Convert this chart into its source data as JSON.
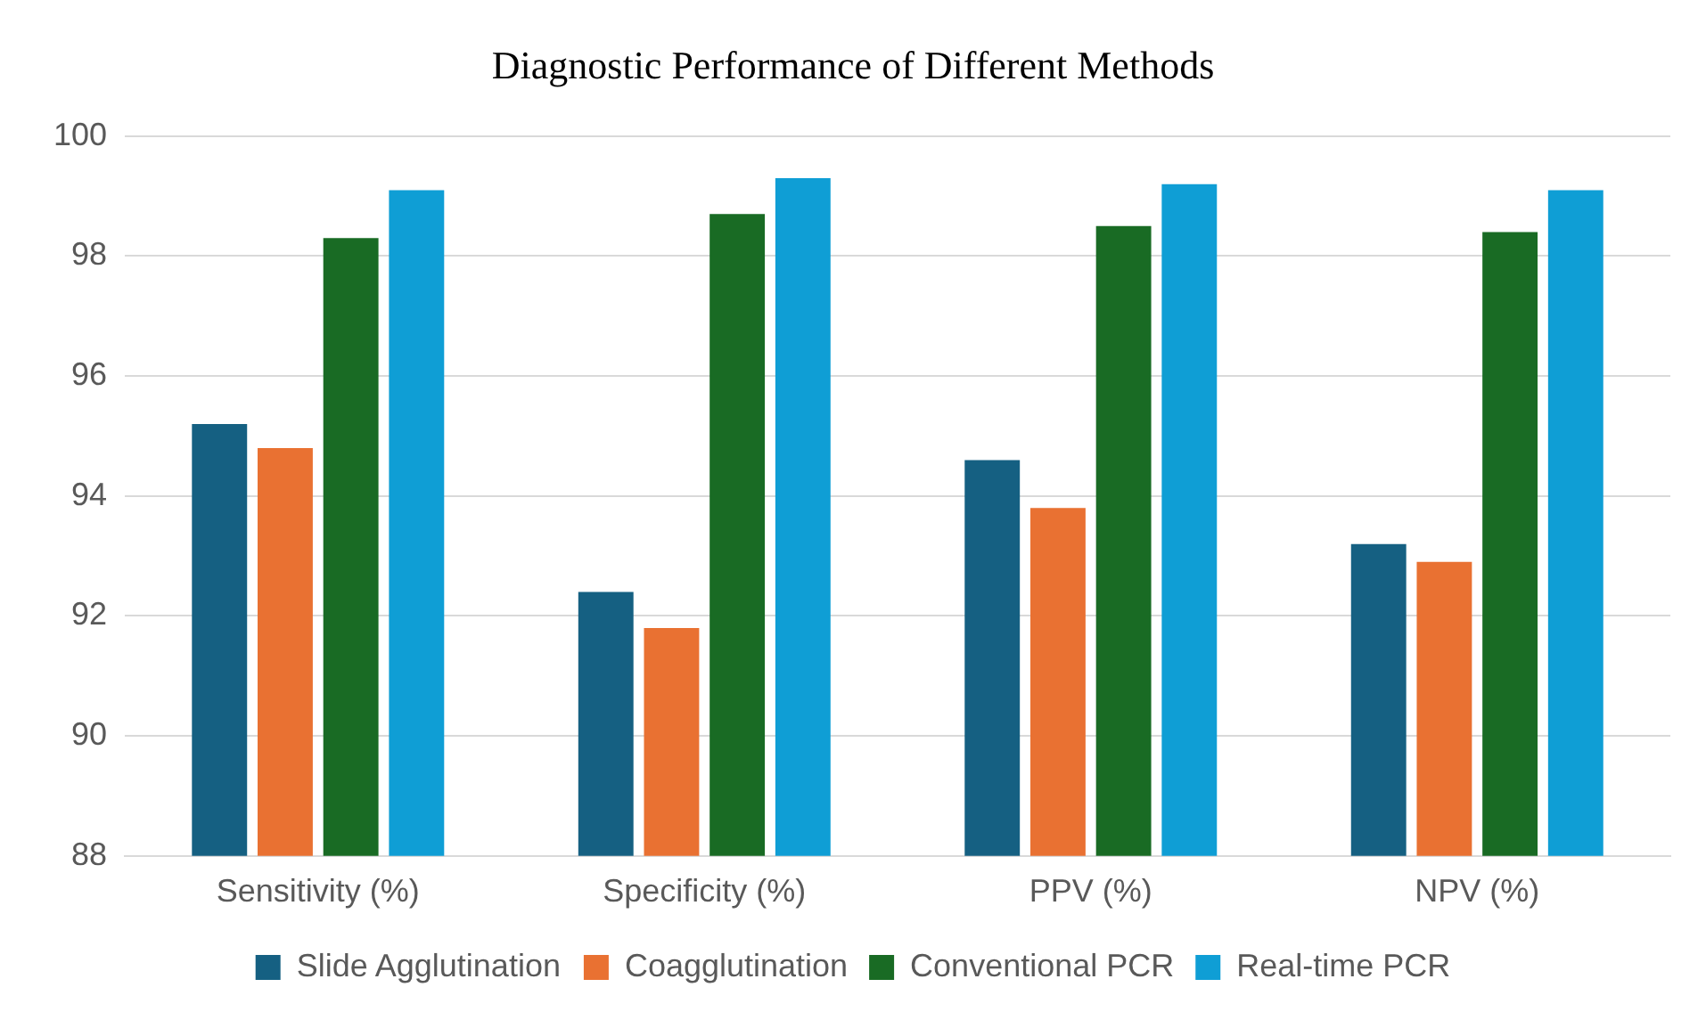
{
  "chart_data": {
    "type": "bar",
    "title": "Diagnostic Performance of Different Methods",
    "categories": [
      "Sensitivity (%)",
      "Specificity (%)",
      "PPV (%)",
      "NPV (%)"
    ],
    "series": [
      {
        "name": "Slide Agglutination",
        "color": "#156082",
        "values": [
          95.2,
          92.4,
          94.6,
          93.2
        ]
      },
      {
        "name": "Coagglutination",
        "color": "#e97132",
        "values": [
          94.8,
          91.8,
          93.8,
          92.9
        ]
      },
      {
        "name": "Conventional PCR",
        "color": "#196b24",
        "values": [
          98.3,
          98.7,
          98.5,
          98.4
        ]
      },
      {
        "name": "Real-time PCR",
        "color": "#0f9ed5",
        "values": [
          99.1,
          99.3,
          99.2,
          99.1
        ]
      }
    ],
    "ylim": [
      88,
      100
    ],
    "yticks": [
      88,
      90,
      92,
      94,
      96,
      98,
      100
    ],
    "grid": "y",
    "legend": "bottom"
  }
}
